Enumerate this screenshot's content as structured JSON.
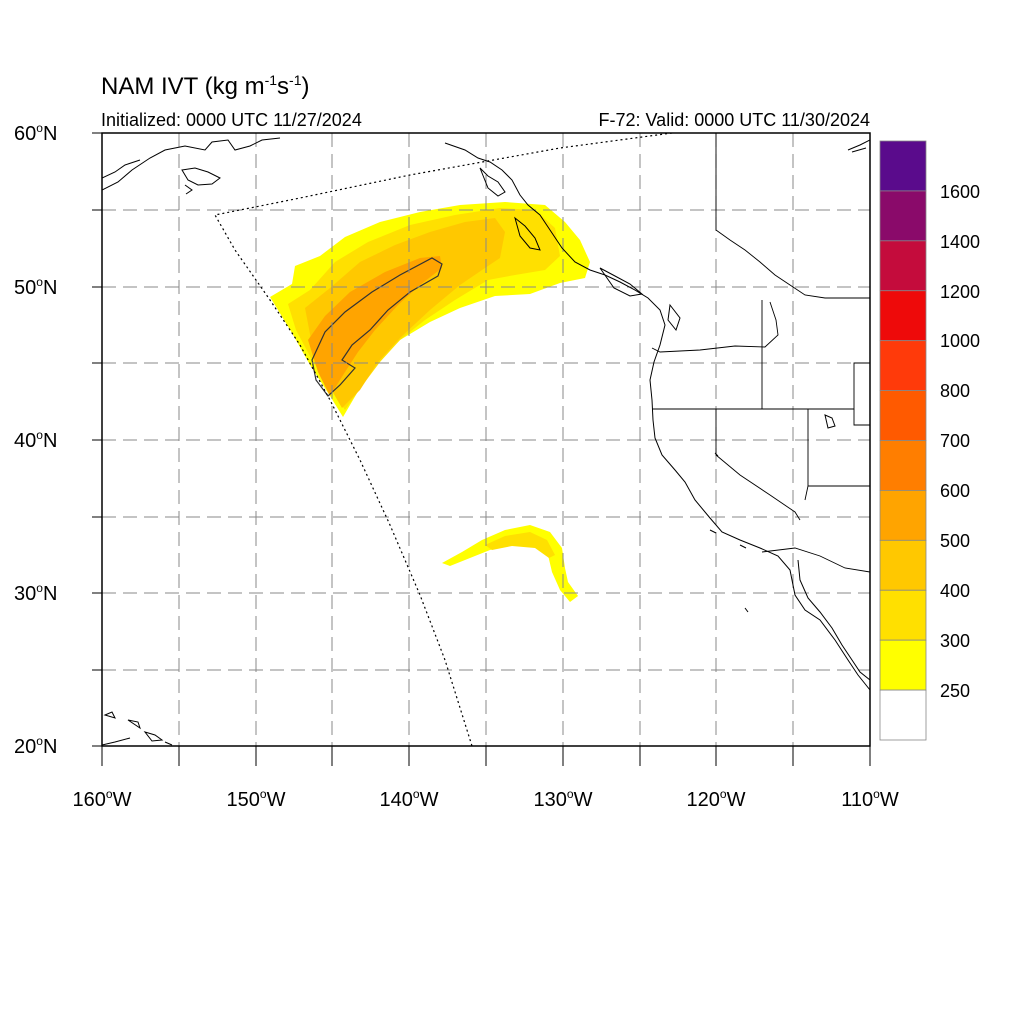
{
  "header": {
    "title_main": "NAM IVT (kg m",
    "title_exp1": "-1",
    "title_mid": "s",
    "title_exp2": "-1",
    "title_end": ")",
    "initialized": "Initialized: 0000 UTC 11/27/2024",
    "valid": "F-72: Valid: 0000 UTC 11/30/2024"
  },
  "map": {
    "lat_labels": [
      "60",
      "50",
      "40",
      "30",
      "20"
    ],
    "lat_suffix": "N",
    "lon_labels": [
      "160",
      "150",
      "140",
      "130",
      "120",
      "110"
    ],
    "lon_suffix": "W",
    "lat_range": [
      20,
      60
    ],
    "lon_range": [
      -160,
      -110
    ],
    "grid": "dashed every 5 degrees"
  },
  "colorbar": {
    "labels": [
      "1600",
      "1400",
      "1200",
      "1000",
      "800",
      "700",
      "600",
      "500",
      "400",
      "300",
      "250"
    ],
    "colors": [
      "#5a0b8c",
      "#8a0a6a",
      "#c40c3c",
      "#ee0a0a",
      "#ff3a0a",
      "#ff5a00",
      "#ff7e00",
      "#ffa400",
      "#ffc800",
      "#ffe000",
      "#ffff00",
      "#ffffff"
    ]
  }
}
